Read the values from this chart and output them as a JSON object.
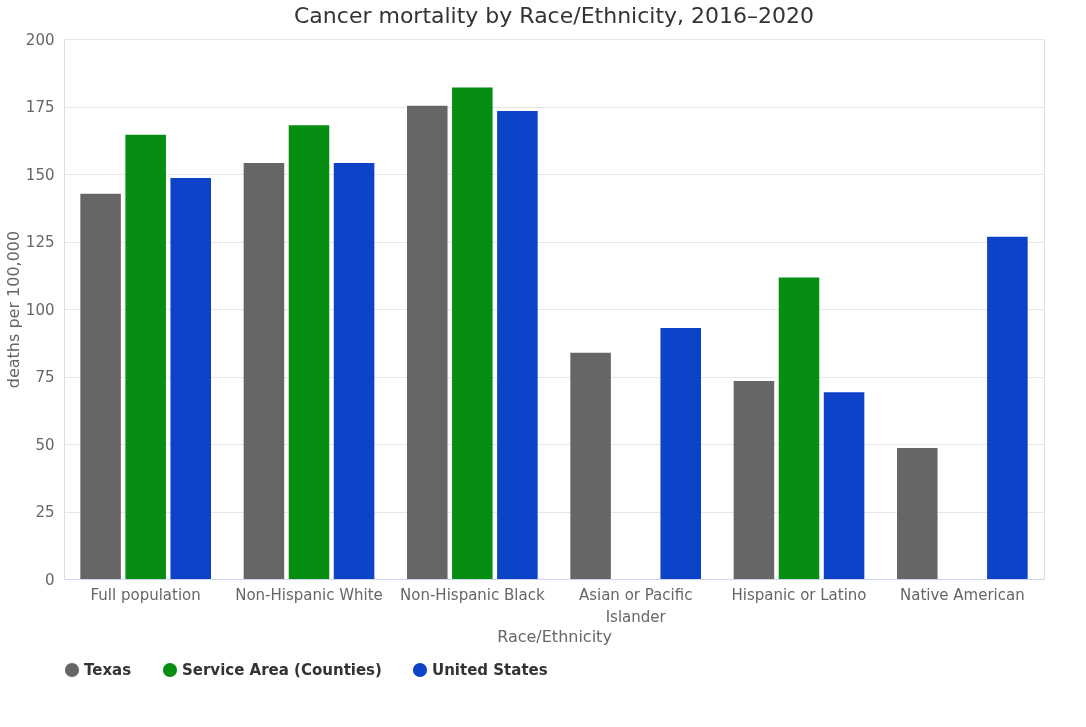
{
  "chart_data": {
    "type": "bar",
    "title": "Cancer mortality by Race/Ethnicity, 2016–2020",
    "xlabel": "Race/Ethnicity",
    "ylabel": "deaths per 100,000",
    "categories": [
      "Full population",
      "Non-Hispanic White",
      "Non-Hispanic Black",
      "Asian or Pacific Islander",
      "Hispanic or Latino",
      "Native American"
    ],
    "series": [
      {
        "name": "Texas",
        "color": "#666666",
        "values": [
          142.7,
          154.1,
          175.3,
          83.8,
          73.3,
          48.5
        ]
      },
      {
        "name": "Service Area (Counties)",
        "color": "#058e11",
        "values": [
          164.5,
          168.1,
          182.0,
          null,
          111.7,
          null
        ]
      },
      {
        "name": "United States",
        "color": "#0c43c9",
        "values": [
          148.5,
          154.1,
          173.3,
          93.0,
          69.2,
          126.8
        ]
      }
    ],
    "ylim": [
      0,
      200
    ],
    "yticks": [
      0,
      25,
      50,
      75,
      100,
      125,
      150,
      175,
      200
    ],
    "grid": "y",
    "legend": "bottom"
  }
}
